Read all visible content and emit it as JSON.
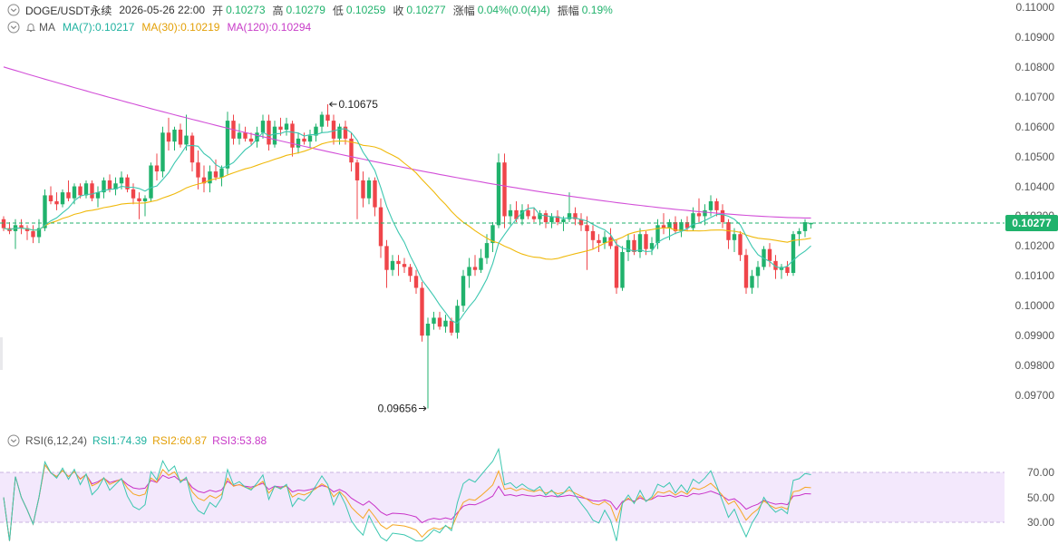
{
  "header": {
    "symbol": "DOGE/USDT永续",
    "datetime": "2026-05-26 22:00",
    "open_label": "开",
    "open": "0.10273",
    "high_label": "高",
    "high": "0.10279",
    "low_label": "低",
    "low": "0.10259",
    "close_label": "收",
    "close": "0.10277",
    "change_label": "涨幅",
    "change": "0.04%(0.0(4)4)",
    "amplitude_label": "振幅",
    "amplitude": "0.19%"
  },
  "ma_header": {
    "name": "MA",
    "ma7": "MA(7):0.10217",
    "ma30": "MA(30):0.10219",
    "ma120": "MA(120):0.10294"
  },
  "rsi_header": {
    "name": "RSI(6,12,24)",
    "rsi1": "RSI1:74.39",
    "rsi2": "RSI2:60.87",
    "rsi3": "RSI3:53.88"
  },
  "colors": {
    "up": "#20b26c",
    "down": "#ef454a",
    "ma7": "#3cc7b0",
    "ma30": "#f0b90b",
    "ma120": "#d24fd8",
    "rsi1": "#3cc7b0",
    "rsi2": "#f5a623",
    "rsi3": "#c832c8",
    "rsi_band": "#f3e8fc"
  },
  "icons": {
    "collapse": "chevron-down-circle-icon",
    "alert": "bell-icon"
  },
  "chart_data": [
    {
      "type": "candlestick",
      "y_ticks": [
        "0.11000",
        "0.10900",
        "0.10800",
        "0.10700",
        "0.10600",
        "0.10500",
        "0.10400",
        "0.10300",
        "0.10200",
        "0.10100",
        "0.10000",
        "0.09900",
        "0.09800",
        "0.09700"
      ],
      "ylim": [
        0.0965,
        0.1102
      ],
      "last_price": "0.10277",
      "annotations": {
        "high": "0.10675",
        "low": "0.09656"
      },
      "candles": [
        [
          0.1029,
          0.103,
          0.1025,
          0.1026
        ],
        [
          0.1026,
          0.1028,
          0.1024,
          0.1025
        ],
        [
          0.1025,
          0.1029,
          0.1019,
          0.1027
        ],
        [
          0.1027,
          0.1029,
          0.1024,
          0.1026
        ],
        [
          0.1026,
          0.1027,
          0.1022,
          0.1025
        ],
        [
          0.1025,
          0.1027,
          0.1021,
          0.1023
        ],
        [
          0.1023,
          0.1029,
          0.1021,
          0.1026
        ],
        [
          0.1026,
          0.1039,
          0.1025,
          0.1037
        ],
        [
          0.1037,
          0.104,
          0.1034,
          0.1035
        ],
        [
          0.1035,
          0.1038,
          0.1032,
          0.1034
        ],
        [
          0.1034,
          0.1039,
          0.1033,
          0.1038
        ],
        [
          0.1038,
          0.1042,
          0.1035,
          0.1036
        ],
        [
          0.1036,
          0.1041,
          0.1034,
          0.104
        ],
        [
          0.104,
          0.1041,
          0.1036,
          0.1037
        ],
        [
          0.1037,
          0.1042,
          0.1036,
          0.1041
        ],
        [
          0.1041,
          0.1042,
          0.1035,
          0.1036
        ],
        [
          0.1036,
          0.104,
          0.1033,
          0.1038
        ],
        [
          0.1038,
          0.1043,
          0.1036,
          0.1042
        ],
        [
          0.1042,
          0.1044,
          0.1038,
          0.1039
        ],
        [
          0.1039,
          0.1043,
          0.1037,
          0.1041
        ],
        [
          0.1041,
          0.1045,
          0.1039,
          0.1043
        ],
        [
          0.1043,
          0.1044,
          0.1038,
          0.1039
        ],
        [
          0.1039,
          0.1041,
          0.1034,
          0.1036
        ],
        [
          0.1036,
          0.1038,
          0.1029,
          0.1035
        ],
        [
          0.1035,
          0.1037,
          0.103,
          0.1036
        ],
        [
          0.1036,
          0.1048,
          0.1035,
          0.1047
        ],
        [
          0.1047,
          0.1051,
          0.1042,
          0.1045
        ],
        [
          0.1045,
          0.106,
          0.1043,
          0.1058
        ],
        [
          0.1058,
          0.1063,
          0.1052,
          0.1055
        ],
        [
          0.1055,
          0.106,
          0.1052,
          0.1059
        ],
        [
          0.1059,
          0.1061,
          0.1053,
          0.1054
        ],
        [
          0.1054,
          0.1064,
          0.1052,
          0.1057
        ],
        [
          0.1057,
          0.1058,
          0.1045,
          0.1048
        ],
        [
          0.1048,
          0.1052,
          0.1039,
          0.1043
        ],
        [
          0.1043,
          0.1047,
          0.1038,
          0.1041
        ],
        [
          0.1041,
          0.1047,
          0.1038,
          0.1045
        ],
        [
          0.1045,
          0.1049,
          0.1042,
          0.1043
        ],
        [
          0.1043,
          0.1047,
          0.104,
          0.1046
        ],
        [
          0.1046,
          0.1065,
          0.1044,
          0.1062
        ],
        [
          0.1062,
          0.1064,
          0.1054,
          0.1056
        ],
        [
          0.1056,
          0.1061,
          0.1054,
          0.1058
        ],
        [
          0.1058,
          0.106,
          0.1055,
          0.1056
        ],
        [
          0.1056,
          0.1058,
          0.1054,
          0.1055
        ],
        [
          0.1055,
          0.106,
          0.1053,
          0.1058
        ],
        [
          0.1058,
          0.1064,
          0.1056,
          0.1062
        ],
        [
          0.1062,
          0.1064,
          0.1052,
          0.1054
        ],
        [
          0.1054,
          0.1062,
          0.1053,
          0.106
        ],
        [
          0.106,
          0.1063,
          0.1057,
          0.1059
        ],
        [
          0.1059,
          0.1063,
          0.1057,
          0.1061
        ],
        [
          0.1061,
          0.1062,
          0.105,
          0.1053
        ],
        [
          0.1053,
          0.1058,
          0.1051,
          0.1056
        ],
        [
          0.1056,
          0.1058,
          0.1054,
          0.1055
        ],
        [
          0.1055,
          0.1059,
          0.1053,
          0.1057
        ],
        [
          0.1057,
          0.1061,
          0.1055,
          0.106
        ],
        [
          0.106,
          0.1065,
          0.1058,
          0.1064
        ],
        [
          0.1064,
          0.10675,
          0.106,
          0.1062
        ],
        [
          0.1062,
          0.1064,
          0.1054,
          0.1056
        ],
        [
          0.1056,
          0.1061,
          0.1054,
          0.106
        ],
        [
          0.106,
          0.1062,
          0.1054,
          0.1056
        ],
        [
          0.1056,
          0.1058,
          0.1045,
          0.1048
        ],
        [
          0.1048,
          0.1049,
          0.1029,
          0.1042
        ],
        [
          0.1042,
          0.1045,
          0.1033,
          0.1036
        ],
        [
          0.1036,
          0.1043,
          0.1034,
          0.1042
        ],
        [
          0.1042,
          0.1043,
          0.103,
          0.1033
        ],
        [
          0.1033,
          0.1036,
          0.1016,
          0.102
        ],
        [
          0.102,
          0.1022,
          0.1006,
          0.1012
        ],
        [
          0.1012,
          0.1017,
          0.101,
          0.1015
        ],
        [
          0.1015,
          0.1017,
          0.101,
          0.1014
        ],
        [
          0.1014,
          0.1016,
          0.1011,
          0.1013
        ],
        [
          0.1013,
          0.1014,
          0.1008,
          0.101
        ],
        [
          0.101,
          0.1012,
          0.1004,
          0.1006
        ],
        [
          0.1006,
          0.1008,
          0.0988,
          0.099
        ],
        [
          0.099,
          0.0996,
          0.09656,
          0.0994
        ],
        [
          0.0994,
          0.0998,
          0.0992,
          0.0996
        ],
        [
          0.0996,
          0.0998,
          0.0992,
          0.0993
        ],
        [
          0.0993,
          0.0997,
          0.0991,
          0.0995
        ],
        [
          0.0995,
          0.0996,
          0.099,
          0.0991
        ],
        [
          0.0991,
          0.1002,
          0.0989,
          0.1
        ],
        [
          0.1,
          0.1012,
          0.0998,
          0.101
        ],
        [
          0.101,
          0.1016,
          0.1006,
          0.1013
        ],
        [
          0.1013,
          0.1017,
          0.101,
          0.1012
        ],
        [
          0.1012,
          0.1019,
          0.1011,
          0.1016
        ],
        [
          0.1016,
          0.1024,
          0.1014,
          0.1021
        ],
        [
          0.1021,
          0.1028,
          0.1018,
          0.1027
        ],
        [
          0.1027,
          0.1051,
          0.1026,
          0.1048
        ],
        [
          0.1048,
          0.1051,
          0.1026,
          0.103
        ],
        [
          0.103,
          0.1034,
          0.1027,
          0.1032
        ],
        [
          0.1032,
          0.1035,
          0.1028,
          0.1029
        ],
        [
          0.1029,
          0.1034,
          0.1027,
          0.1032
        ],
        [
          0.1032,
          0.1034,
          0.1029,
          0.103
        ],
        [
          0.103,
          0.1033,
          0.1028,
          0.1029
        ],
        [
          0.1029,
          0.1032,
          0.1027,
          0.1031
        ],
        [
          0.1031,
          0.1032,
          0.1026,
          0.1028
        ],
        [
          0.1028,
          0.1031,
          0.1026,
          0.103
        ],
        [
          0.103,
          0.1032,
          0.1027,
          0.1028
        ],
        [
          0.1028,
          0.103,
          0.1025,
          0.1029
        ],
        [
          0.1029,
          0.1038,
          0.1028,
          0.1031
        ],
        [
          0.1031,
          0.1033,
          0.1027,
          0.1029
        ],
        [
          0.1029,
          0.1031,
          0.1025,
          0.1027
        ],
        [
          0.1027,
          0.103,
          0.1012,
          0.1025
        ],
        [
          0.1025,
          0.1027,
          0.1019,
          0.1022
        ],
        [
          0.1022,
          0.1024,
          0.1018,
          0.1021
        ],
        [
          0.1021,
          0.1025,
          0.1019,
          0.1023
        ],
        [
          0.1023,
          0.1026,
          0.1019,
          0.102
        ],
        [
          0.102,
          0.1022,
          0.1004,
          0.1006
        ],
        [
          0.1006,
          0.102,
          0.1005,
          0.1018
        ],
        [
          0.1018,
          0.1024,
          0.1015,
          0.1022
        ],
        [
          0.1022,
          0.1024,
          0.1017,
          0.1018
        ],
        [
          0.1018,
          0.1026,
          0.1016,
          0.1024
        ],
        [
          0.1024,
          0.1025,
          0.1017,
          0.1019
        ],
        [
          0.1019,
          0.1023,
          0.1017,
          0.1021
        ],
        [
          0.1021,
          0.1029,
          0.1019,
          0.1027
        ],
        [
          0.1027,
          0.1031,
          0.1024,
          0.1026
        ],
        [
          0.1026,
          0.1029,
          0.1022,
          0.1028
        ],
        [
          0.1028,
          0.103,
          0.1024,
          0.1025
        ],
        [
          0.1025,
          0.1029,
          0.1023,
          0.1028
        ],
        [
          0.1028,
          0.103,
          0.1025,
          0.1026
        ],
        [
          0.1026,
          0.1033,
          0.1025,
          0.1031
        ],
        [
          0.1031,
          0.1036,
          0.1028,
          0.103
        ],
        [
          0.103,
          0.1034,
          0.1027,
          0.1032
        ],
        [
          0.1032,
          0.1037,
          0.103,
          0.1035
        ],
        [
          0.1035,
          0.1036,
          0.103,
          0.1032
        ],
        [
          0.1032,
          0.1034,
          0.1026,
          0.1028
        ],
        [
          0.1028,
          0.1029,
          0.1019,
          0.1022
        ],
        [
          0.1022,
          0.1026,
          0.1018,
          0.1024
        ],
        [
          0.1024,
          0.1025,
          0.1015,
          0.1017
        ],
        [
          0.1017,
          0.1019,
          0.1004,
          0.1006
        ],
        [
          0.1006,
          0.1012,
          0.1004,
          0.101
        ],
        [
          0.101,
          0.1015,
          0.1006,
          0.1013
        ],
        [
          0.1013,
          0.102,
          0.1012,
          0.1019
        ],
        [
          0.1019,
          0.1021,
          0.1013,
          0.1015
        ],
        [
          0.1015,
          0.1017,
          0.1009,
          0.1012
        ],
        [
          0.1012,
          0.1014,
          0.1009,
          0.1013
        ],
        [
          0.1013,
          0.1015,
          0.101,
          0.1011
        ],
        [
          0.1011,
          0.1025,
          0.101,
          0.1024
        ],
        [
          0.1024,
          0.1026,
          0.102,
          0.1025
        ],
        [
          0.1025,
          0.1029,
          0.1023,
          0.1028
        ],
        [
          0.10273,
          0.10279,
          0.10259,
          0.10277
        ]
      ]
    },
    {
      "type": "line",
      "title": "RSI(6,12,24)",
      "y_ticks": [
        "70.00",
        "50.00",
        "30.00"
      ],
      "ylim": [
        20,
        84
      ],
      "band": [
        30,
        70
      ],
      "series": [
        {
          "name": "RSI1"
        },
        {
          "name": "RSI2"
        },
        {
          "name": "RSI3"
        }
      ]
    }
  ]
}
